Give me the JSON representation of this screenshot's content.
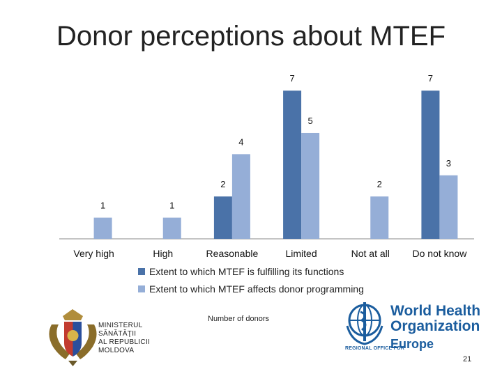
{
  "title": "Donor perceptions about MTEF",
  "chart_data": {
    "type": "bar",
    "categories": [
      "Very high",
      "High",
      "Reasonable",
      "Limited",
      "Not at all",
      "Do not know"
    ],
    "series": [
      {
        "name": "Extent to which MTEF is fulfilling its functions",
        "values": [
          null,
          null,
          2,
          7,
          null,
          7
        ],
        "color": "#4a72a8"
      },
      {
        "name": "Extent to which MTEF affects donor programming",
        "values": [
          1,
          1,
          4,
          5,
          2,
          3
        ],
        "color": "#95aed7"
      }
    ],
    "ylim": [
      0,
      7.4
    ],
    "grid": false,
    "legend_position": "bottom",
    "xlabel": "",
    "ylabel": ""
  },
  "caption": "Number of donors",
  "ministry": {
    "lines": [
      "MINISTERUL",
      "SĂNĂTĂŢII",
      "AL REPUBLICII",
      "MOLDOVA"
    ]
  },
  "who": {
    "line1": "World Health",
    "line2": "Organization",
    "line3": "Europe",
    "regional": "REGIONAL OFFICE FOR"
  },
  "page_number": "21",
  "colors": {
    "series1": "#4a72a8",
    "series2": "#95aed7",
    "who_blue": "#1b5d9e"
  }
}
